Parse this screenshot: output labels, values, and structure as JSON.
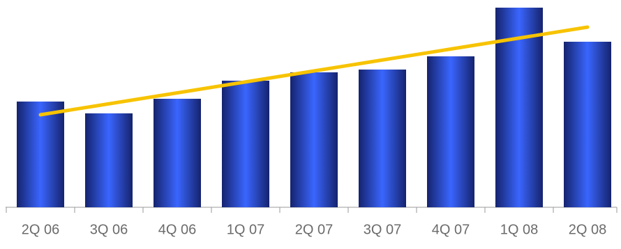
{
  "chart_data": {
    "type": "bar",
    "categories": [
      "2Q 06",
      "3Q 06",
      "4Q 06",
      "1Q 07",
      "2Q 07",
      "3Q 07",
      "4Q 07",
      "1Q 08",
      "2Q 08"
    ],
    "series": [
      {
        "color": "#2f5cf2",
        "values": [
          152,
          135,
          156,
          182,
          194,
          198,
          217,
          287,
          238
        ]
      },
      {
        "type": "line",
        "color": "#f7c300",
        "values": [
          133,
          148.75,
          164.5,
          180.25,
          196,
          211.75,
          227.5,
          243.25,
          259
        ]
      }
    ],
    "ylim": [
      0,
      300
    ]
  }
}
